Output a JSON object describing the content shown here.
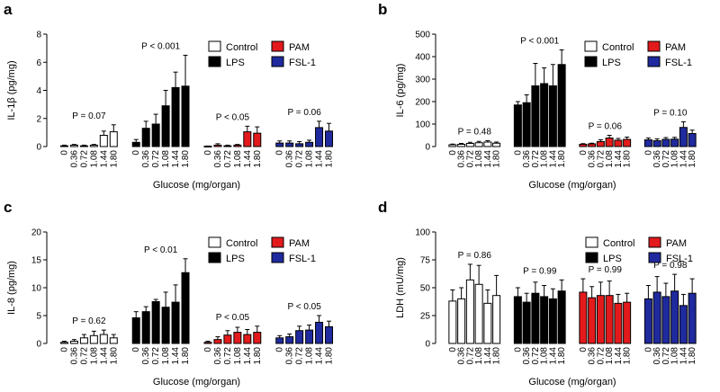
{
  "figure": {
    "xtick_labels": [
      "0",
      "0.36",
      "0.72",
      "1.08",
      "1.44",
      "1.80"
    ]
  },
  "chart_data": [
    {
      "panel": "a",
      "type": "bar",
      "ylabel": "IL-1β (pg/mg)",
      "xlabel": "Glucose (mg/organ)",
      "ylim": [
        0,
        8
      ],
      "yticks": [
        0,
        2,
        4,
        6,
        8
      ],
      "legend": [
        "Control",
        "PAM",
        "LPS",
        "FSL-1"
      ],
      "groups": [
        {
          "name": "Control",
          "color": "#ffffff",
          "values": [
            0.05,
            0.1,
            0.05,
            0.1,
            0.8,
            1.05
          ],
          "errors": [
            0.05,
            0.05,
            0.05,
            0.05,
            0.3,
            0.5
          ],
          "pvalue": "P = 0.07"
        },
        {
          "name": "LPS",
          "color": "#000000",
          "values": [
            0.3,
            1.3,
            1.6,
            2.9,
            4.2,
            4.3
          ],
          "errors": [
            0.2,
            0.5,
            0.7,
            1.1,
            1.1,
            2.2
          ],
          "pvalue": "P < 0.001"
        },
        {
          "name": "PAM",
          "color": "#e31a1c",
          "values": [
            0.02,
            0.1,
            0.05,
            0.1,
            1.05,
            0.95
          ],
          "errors": [
            0.02,
            0.1,
            0.05,
            0.05,
            0.4,
            0.45
          ],
          "pvalue": "P < 0.05"
        },
        {
          "name": "FSL-1",
          "color": "#1f2a9e",
          "values": [
            0.25,
            0.25,
            0.2,
            0.3,
            1.35,
            1.1
          ],
          "errors": [
            0.15,
            0.15,
            0.15,
            0.15,
            0.45,
            0.55
          ],
          "pvalue": "P = 0.06"
        }
      ]
    },
    {
      "panel": "b",
      "type": "bar",
      "ylabel": "IL-6 (pg/mg)",
      "xlabel": "Glucose (mg/organ)",
      "ylim": [
        0,
        500
      ],
      "yticks": [
        0,
        100,
        200,
        300,
        400,
        500
      ],
      "legend": [
        "Control",
        "PAM",
        "LPS",
        "FSL-1"
      ],
      "groups": [
        {
          "name": "Control",
          "color": "#ffffff",
          "values": [
            8,
            10,
            14,
            17,
            20,
            15
          ],
          "errors": [
            3,
            4,
            5,
            6,
            6,
            5
          ],
          "pvalue": "P = 0.48"
        },
        {
          "name": "LPS",
          "color": "#000000",
          "values": [
            185,
            195,
            270,
            280,
            270,
            365
          ],
          "errors": [
            15,
            35,
            100,
            70,
            95,
            65
          ],
          "pvalue": "P < 0.001"
        },
        {
          "name": "PAM",
          "color": "#e31a1c",
          "values": [
            10,
            12,
            22,
            38,
            28,
            32
          ],
          "errors": [
            3,
            3,
            8,
            12,
            8,
            10
          ],
          "pvalue": "P = 0.06"
        },
        {
          "name": "FSL-1",
          "color": "#1f2a9e",
          "values": [
            30,
            26,
            32,
            33,
            85,
            58
          ],
          "errors": [
            8,
            8,
            8,
            8,
            25,
            15
          ],
          "pvalue": "P = 0.10"
        }
      ]
    },
    {
      "panel": "c",
      "type": "bar",
      "ylabel": "IL-8 (pg/mg)",
      "xlabel": "Glucose (mg/organ)",
      "ylim": [
        0,
        20
      ],
      "yticks": [
        0,
        5,
        10,
        15,
        20
      ],
      "legend": [
        "Control",
        "PAM",
        "LPS",
        "FSL-1"
      ],
      "groups": [
        {
          "name": "Control",
          "color": "#ffffff",
          "values": [
            0.2,
            0.4,
            1.0,
            1.4,
            1.6,
            1.0
          ],
          "errors": [
            0.2,
            0.3,
            0.6,
            0.8,
            0.8,
            0.6
          ],
          "pvalue": "P = 0.62"
        },
        {
          "name": "LPS",
          "color": "#000000",
          "values": [
            4.6,
            5.7,
            7.5,
            6.5,
            7.4,
            12.7
          ],
          "errors": [
            1.1,
            0.9,
            0.4,
            2.7,
            3.1,
            2.5
          ],
          "pvalue": "P < 0.01"
        },
        {
          "name": "PAM",
          "color": "#e31a1c",
          "values": [
            0.2,
            0.7,
            1.5,
            2.0,
            1.6,
            2.0
          ],
          "errors": [
            0.2,
            0.5,
            0.8,
            0.9,
            0.9,
            1.1
          ],
          "pvalue": "P < 0.05"
        },
        {
          "name": "FSL-1",
          "color": "#1f2a9e",
          "values": [
            1.0,
            1.2,
            2.3,
            2.4,
            3.8,
            3.0
          ],
          "errors": [
            0.4,
            0.5,
            0.8,
            0.9,
            1.2,
            1.0
          ],
          "pvalue": "P < 0.05"
        }
      ]
    },
    {
      "panel": "d",
      "type": "bar",
      "ylabel": "LDH (mU/mg)",
      "xlabel": "Glucose (mg/organ)",
      "ylim": [
        0,
        100
      ],
      "yticks": [
        0,
        25,
        50,
        75,
        100
      ],
      "legend": [
        "Control",
        "PAM",
        "LPS",
        "FSL-1"
      ],
      "groups": [
        {
          "name": "Control",
          "color": "#ffffff",
          "values": [
            38,
            40,
            57,
            53,
            36,
            43
          ],
          "errors": [
            10,
            10,
            14,
            17,
            12,
            18
          ],
          "pvalue": "P = 0.86"
        },
        {
          "name": "LPS",
          "color": "#000000",
          "values": [
            42,
            37,
            45,
            42,
            40,
            47
          ],
          "errors": [
            8,
            8,
            10,
            10,
            9,
            10
          ],
          "pvalue": "P = 0.99"
        },
        {
          "name": "PAM",
          "color": "#e31a1c",
          "values": [
            46,
            41,
            43,
            43,
            36,
            37
          ],
          "errors": [
            12,
            10,
            12,
            13,
            8,
            8
          ],
          "pvalue": "P = 0.99"
        },
        {
          "name": "FSL-1",
          "color": "#1f2a9e",
          "values": [
            40,
            46,
            42,
            47,
            34,
            45
          ],
          "errors": [
            12,
            14,
            12,
            15,
            10,
            13
          ],
          "pvalue": "P = 0.98"
        }
      ]
    }
  ]
}
